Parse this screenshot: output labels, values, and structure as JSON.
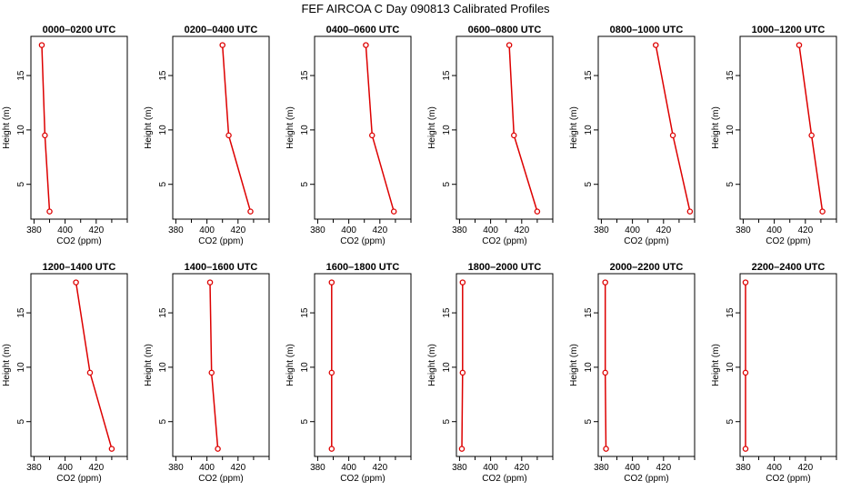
{
  "title": "FEF AIRCOA C  Day 090813  Calibrated Profiles",
  "chart_data": {
    "type": "line",
    "xlabel": "CO2 (ppm)",
    "ylabel": "Height (m)",
    "xlim": [
      378,
      440
    ],
    "ylim": [
      1.8,
      18.6
    ],
    "x_ticks": [
      380,
      400,
      420
    ],
    "y_ticks": [
      5,
      10,
      15
    ],
    "line_color": "#dd0000",
    "panels": [
      {
        "title": "0000–0200 UTC",
        "series": [
          {
            "name": "profile",
            "x": [
              390,
              387,
              385
            ],
            "y": [
              2.5,
              9.5,
              17.8
            ]
          }
        ]
      },
      {
        "title": "0200–0400 UTC",
        "series": [
          {
            "name": "profile",
            "x": [
              428,
              414,
              410
            ],
            "y": [
              2.5,
              9.5,
              17.8
            ]
          }
        ]
      },
      {
        "title": "0400–0600 UTC",
        "series": [
          {
            "name": "profile",
            "x": [
              429,
              415,
              411
            ],
            "y": [
              2.5,
              9.5,
              17.8
            ]
          }
        ]
      },
      {
        "title": "0600–0800 UTC",
        "series": [
          {
            "name": "profile",
            "x": [
              430,
              415,
              412
            ],
            "y": [
              2.5,
              9.5,
              17.8
            ]
          }
        ]
      },
      {
        "title": "0800–1000 UTC",
        "series": [
          {
            "name": "profile",
            "x": [
              437,
              426,
              415
            ],
            "y": [
              2.5,
              9.5,
              17.8
            ]
          }
        ]
      },
      {
        "title": "1000–1200 UTC",
        "series": [
          {
            "name": "profile",
            "x": [
              431,
              424,
              416
            ],
            "y": [
              2.5,
              9.5,
              17.8
            ]
          }
        ]
      },
      {
        "title": "1200–1400 UTC",
        "series": [
          {
            "name": "profile",
            "x": [
              430,
              416,
              407
            ],
            "y": [
              2.5,
              9.5,
              17.8
            ]
          }
        ]
      },
      {
        "title": "1400–1600 UTC",
        "series": [
          {
            "name": "profile",
            "x": [
              407,
              403,
              402
            ],
            "y": [
              2.5,
              9.5,
              17.8
            ]
          }
        ]
      },
      {
        "title": "1600–1800 UTC",
        "series": [
          {
            "name": "profile",
            "x": [
              389,
              389,
              389
            ],
            "y": [
              2.5,
              9.5,
              17.8
            ]
          }
        ]
      },
      {
        "title": "1800–2000 UTC",
        "series": [
          {
            "name": "profile",
            "x": [
              381.5,
              382,
              382
            ],
            "y": [
              2.5,
              9.5,
              17.8
            ]
          }
        ]
      },
      {
        "title": "2000–2200 UTC",
        "series": [
          {
            "name": "profile",
            "x": [
              383,
              382.5,
              382.5
            ],
            "y": [
              2.5,
              9.5,
              17.8
            ]
          }
        ]
      },
      {
        "title": "2200–2400 UTC",
        "series": [
          {
            "name": "profile",
            "x": [
              381.5,
              381.5,
              381.5
            ],
            "y": [
              2.5,
              9.5,
              17.8
            ]
          }
        ]
      }
    ]
  }
}
